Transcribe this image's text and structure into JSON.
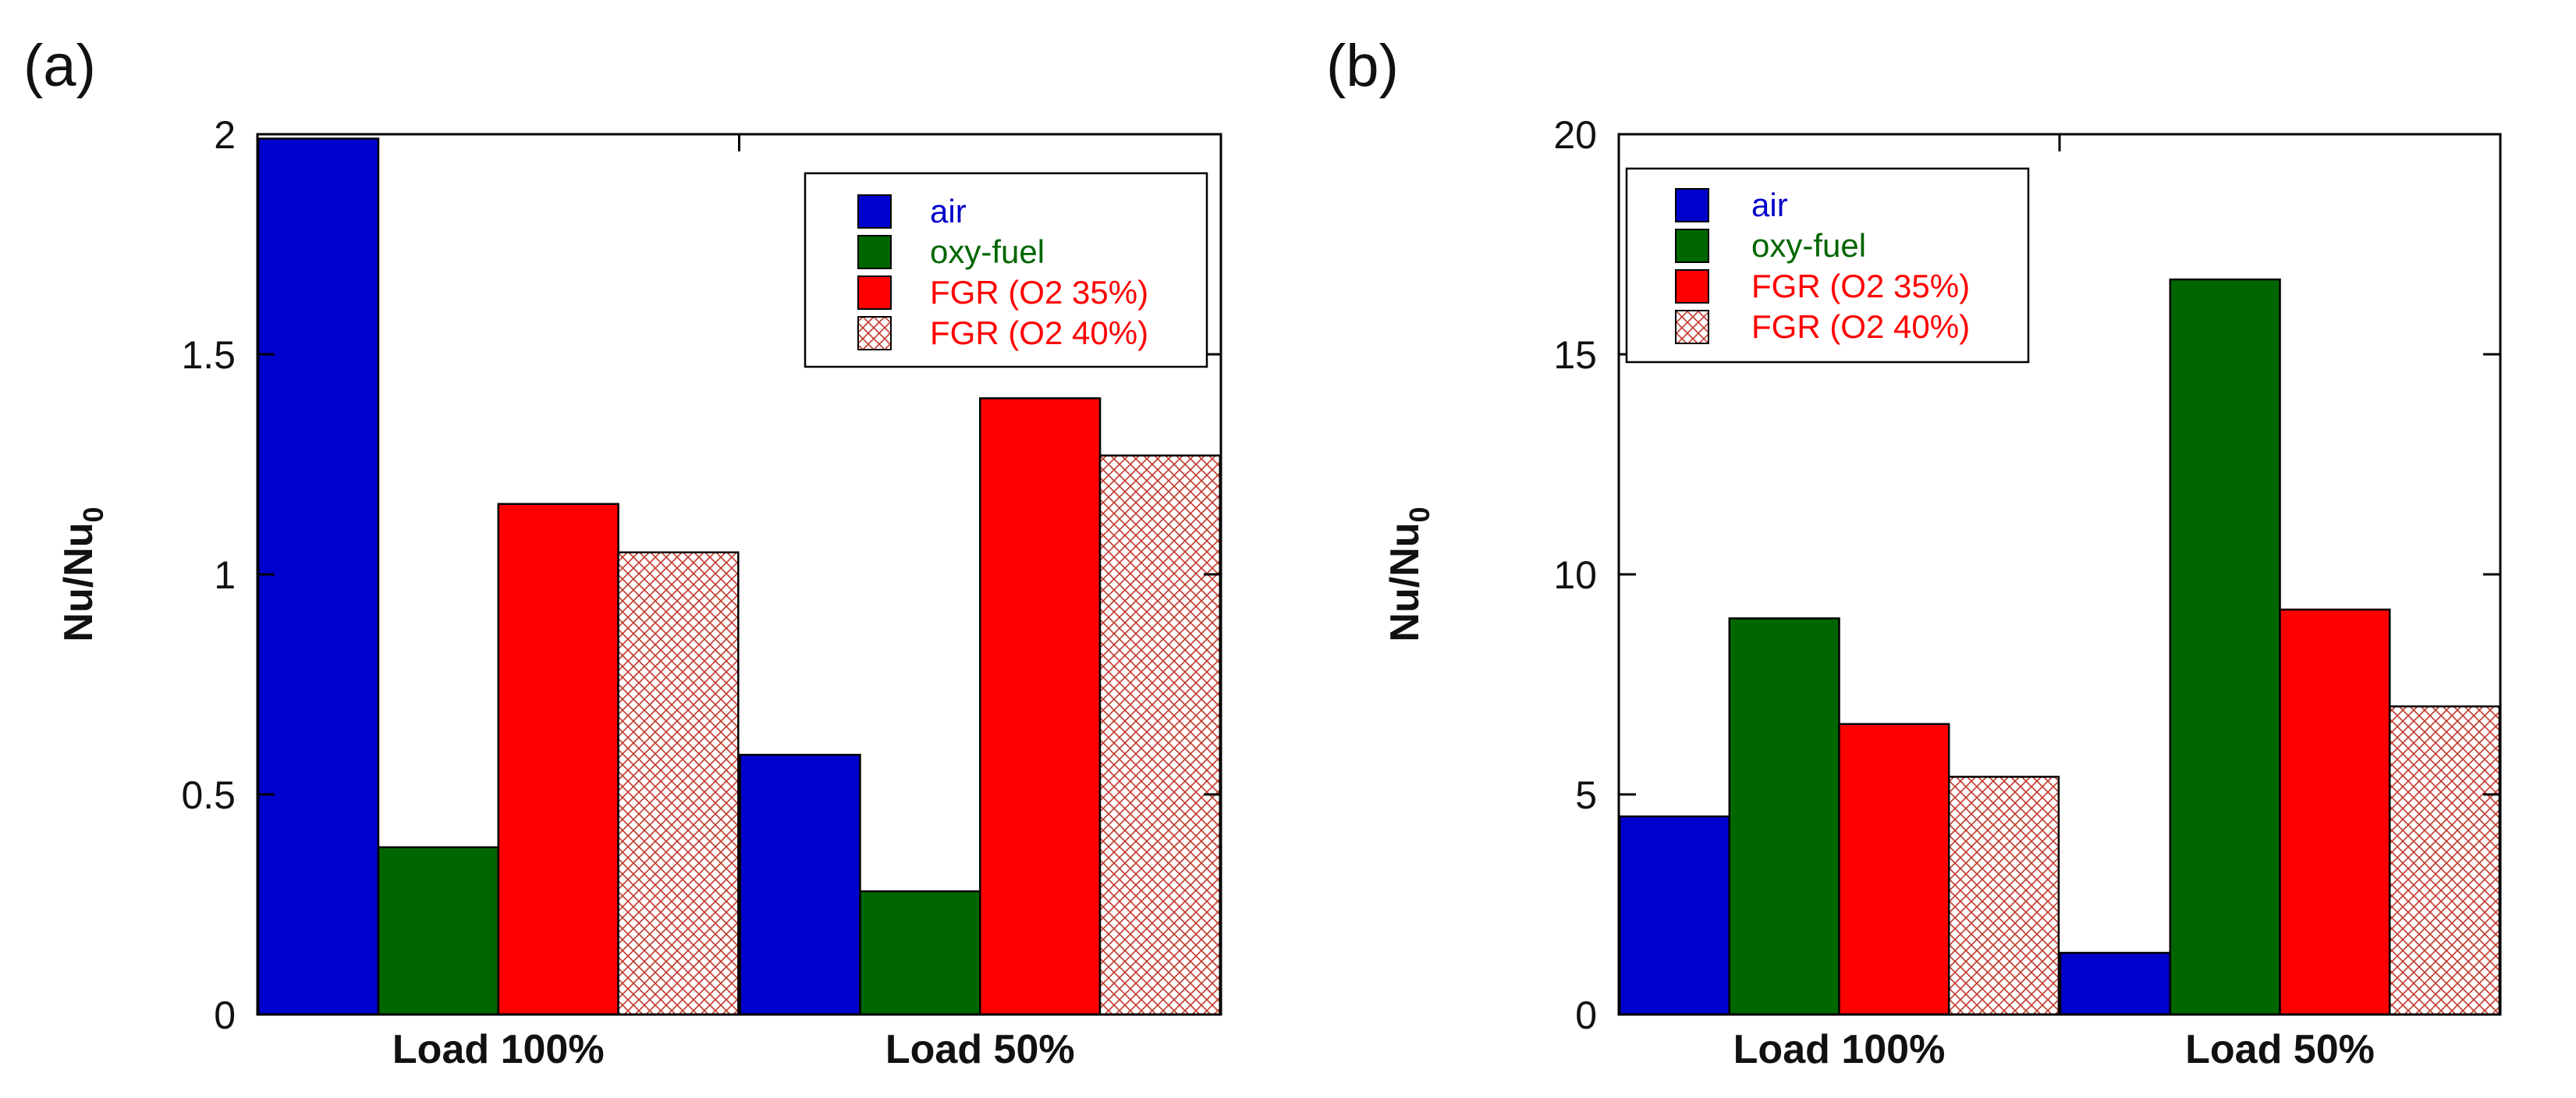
{
  "chart_data": [
    {
      "type": "bar",
      "panel_label": "(a)",
      "title": "",
      "xlabel": "",
      "ylabel": "Nu/Nu",
      "ylabel_subscript": "0",
      "categories": [
        "Load 100%",
        "Load 50%"
      ],
      "ylim": [
        0,
        2
      ],
      "yticks": [
        0,
        0.5,
        1,
        1.5,
        2
      ],
      "ytick_labels": [
        "0",
        "0.5",
        "1",
        "1.5",
        "2"
      ],
      "series": [
        {
          "name": "air",
          "values": [
            1.99,
            0.59
          ],
          "color": "#0000cc",
          "pattern": "solid"
        },
        {
          "name": "oxy-fuel",
          "values": [
            0.38,
            0.28
          ],
          "color": "#006600",
          "pattern": "solid"
        },
        {
          "name": "FGR (O2 35%)",
          "values": [
            1.16,
            1.4
          ],
          "color": "#ff0000",
          "pattern": "solid"
        },
        {
          "name": "FGR (O2 40%)",
          "values": [
            1.05,
            1.27
          ],
          "color": "#cc3333",
          "pattern": "crosshatch"
        }
      ],
      "legend_position": "top-right"
    },
    {
      "type": "bar",
      "panel_label": "(b)",
      "title": "",
      "xlabel": "",
      "ylabel": "Nu/Nu",
      "ylabel_subscript": "0",
      "categories": [
        "Load 100%",
        "Load 50%"
      ],
      "ylim": [
        0,
        20
      ],
      "yticks": [
        0,
        5,
        10,
        15,
        20
      ],
      "ytick_labels": [
        "0",
        "5",
        "10",
        "15",
        "20"
      ],
      "series": [
        {
          "name": "air",
          "values": [
            4.5,
            1.4
          ],
          "color": "#0000cc",
          "pattern": "solid"
        },
        {
          "name": "oxy-fuel",
          "values": [
            9.0,
            16.7
          ],
          "color": "#006600",
          "pattern": "solid"
        },
        {
          "name": "FGR (O2 35%)",
          "values": [
            6.6,
            9.2
          ],
          "color": "#ff0000",
          "pattern": "solid"
        },
        {
          "name": "FGR (O2 40%)",
          "values": [
            5.4,
            7.0
          ],
          "color": "#cc3333",
          "pattern": "crosshatch"
        }
      ],
      "legend_position": "top-left"
    }
  ]
}
